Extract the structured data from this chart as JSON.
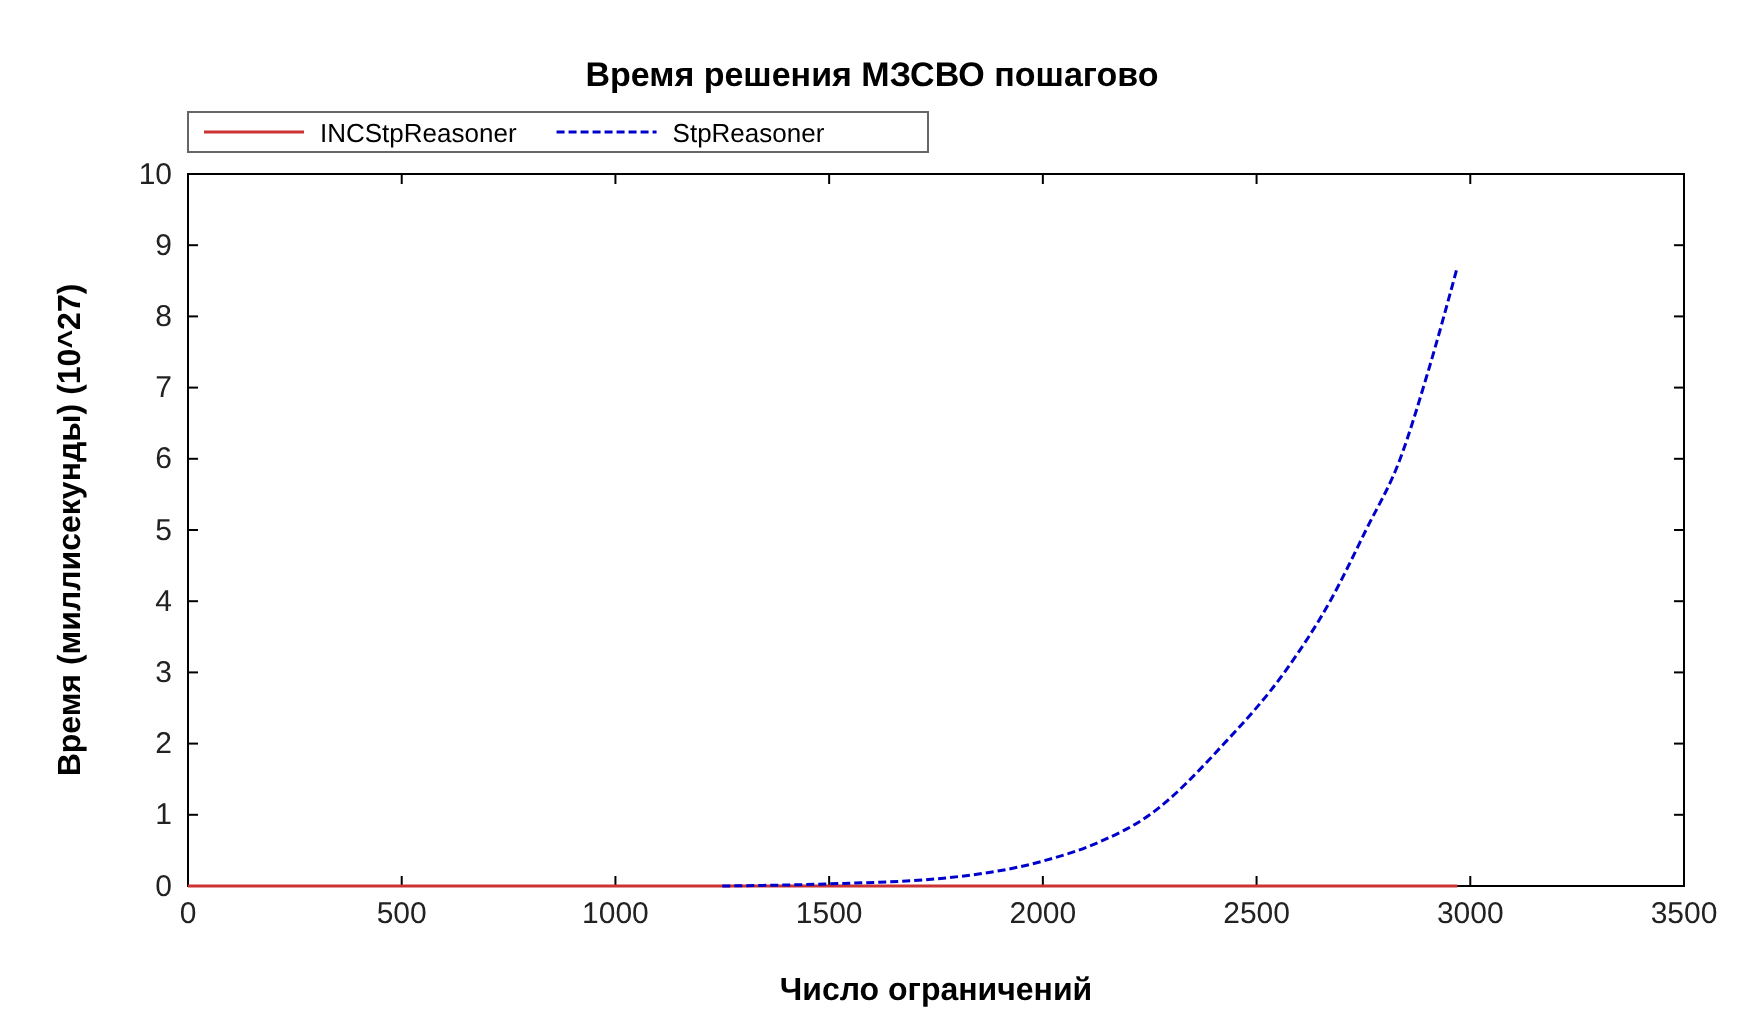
{
  "chart_data": {
    "type": "line",
    "title": "Время решения МЗСВО пошагово",
    "xlabel": "Число ограничений",
    "ylabel": "Время (миллисекунды) (10^27)",
    "xlim": [
      0,
      3500
    ],
    "xticks": [
      0,
      500,
      1000,
      1500,
      2000,
      2500,
      3000,
      3500
    ],
    "ylim": [
      0,
      10
    ],
    "yticks": [
      0,
      1,
      2,
      3,
      4,
      5,
      6,
      7,
      8,
      9,
      10
    ],
    "grid": false,
    "legend": "top left",
    "marker": "none",
    "series": [
      {
        "name": "INCStpReasoner",
        "color": "#cc3333",
        "line_style": "solid",
        "x": [
          0,
          2970
        ],
        "values": [
          0,
          0
        ]
      },
      {
        "name": "StpReasoner",
        "color": "#0000cc",
        "line_style": "dashed",
        "x": [
          1250,
          1500,
          1750,
          2000,
          2125,
          2250,
          2424,
          2565,
          2672,
          2756,
          2836,
          2900,
          2970
        ],
        "values": [
          0,
          0.03,
          0.1,
          0.35,
          0.6,
          1,
          2,
          3,
          4,
          5,
          6,
          7.2,
          8.7
        ]
      }
    ]
  }
}
